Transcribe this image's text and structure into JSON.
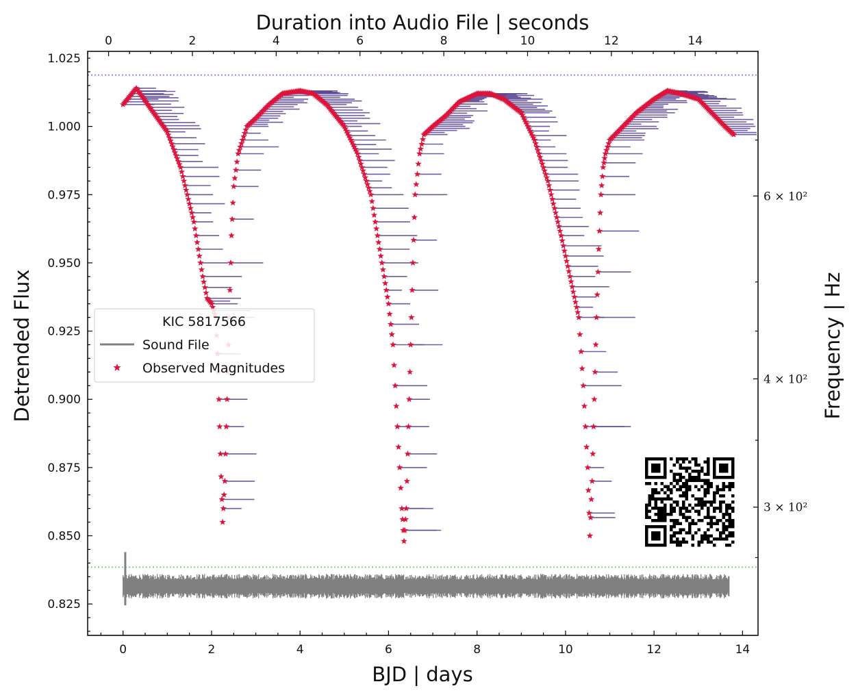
{
  "chart_data": {
    "type": "scatter",
    "xlabel": "BJD | days",
    "ylabel": "Detrended Flux",
    "top_xlabel": "Duration into Audio File | seconds",
    "right_ylabel": "Frequency | Hz",
    "xlim": [
      -0.8,
      14.35
    ],
    "ylim": [
      0.8135,
      1.0275
    ],
    "top_xlim": [
      -0.5,
      15.5
    ],
    "x_ticks": [
      "0",
      "2",
      "4",
      "6",
      "8",
      "10",
      "12",
      "14"
    ],
    "y_ticks": [
      "0.825",
      "0.850",
      "0.875",
      "0.900",
      "0.925",
      "0.950",
      "0.975",
      "1.000",
      "1.025"
    ],
    "top_ticks": [
      "0",
      "2",
      "4",
      "6",
      "8",
      "10",
      "12",
      "14"
    ],
    "right_ticks": [
      {
        "label": "6 × 10²",
        "y": 0.9745
      },
      {
        "label": "4 × 10²",
        "y": 0.9075
      },
      {
        "label": "3 × 10²",
        "y": 0.8605
      }
    ],
    "grid": false,
    "legend": {
      "placement": "center-left",
      "title": "KIC 5817566",
      "entries": [
        {
          "label": "Sound File",
          "color": "#808080",
          "marker": "line"
        },
        {
          "label": "Observed Magnitudes",
          "color": "#dc143c",
          "marker": "star"
        }
      ]
    },
    "reference_lines": [
      {
        "y": 1.0188,
        "color": "#8c8cf0",
        "style": "dotted"
      },
      {
        "y": 0.8385,
        "color": "#8fcc8f",
        "style": "dotted"
      }
    ],
    "series": [
      {
        "label": "Observed Magnitudes",
        "color": "#dc143c",
        "trail_color": "#5e4a94",
        "x": [
          0.0,
          0.3,
          0.6,
          1.0,
          1.3,
          1.6,
          1.8,
          1.9,
          2.0,
          2.1,
          2.15,
          2.2,
          2.25,
          2.3,
          2.35,
          2.4,
          2.45,
          2.5,
          2.6,
          2.8,
          3.0,
          3.3,
          3.6,
          4.0,
          4.3,
          4.6,
          5.0,
          5.3,
          5.6,
          5.8,
          6.0,
          6.1,
          6.2,
          6.3,
          6.35,
          6.4,
          6.45,
          6.5,
          6.55,
          6.6,
          6.7,
          6.8,
          7.0,
          7.3,
          7.6,
          8.0,
          8.3,
          8.6,
          9.0,
          9.3,
          9.6,
          9.9,
          10.1,
          10.3,
          10.4,
          10.5,
          10.55,
          10.6,
          10.65,
          10.7,
          10.75,
          10.8,
          10.85,
          10.9,
          11.0,
          11.3,
          11.6,
          12.0,
          12.3,
          12.6,
          13.0,
          13.3,
          13.6,
          13.8
        ],
        "y": [
          1.008,
          1.014,
          1.007,
          0.998,
          0.985,
          0.965,
          0.945,
          0.937,
          0.935,
          0.93,
          0.91,
          0.88,
          0.855,
          0.87,
          0.9,
          0.93,
          0.96,
          0.978,
          0.99,
          1.0,
          1.003,
          1.008,
          1.012,
          1.013,
          1.012,
          1.008,
          1.0,
          0.99,
          0.975,
          0.955,
          0.935,
          0.92,
          0.89,
          0.86,
          0.848,
          0.86,
          0.89,
          0.92,
          0.95,
          0.975,
          0.99,
          0.997,
          1.0,
          1.004,
          1.009,
          1.012,
          1.012,
          1.01,
          1.005,
          0.995,
          0.98,
          0.96,
          0.945,
          0.93,
          0.905,
          0.875,
          0.85,
          0.87,
          0.9,
          0.93,
          0.955,
          0.975,
          0.985,
          0.99,
          0.995,
          1.0,
          1.005,
          1.01,
          1.013,
          1.012,
          1.01,
          1.005,
          1.0,
          0.997
        ]
      },
      {
        "label": "Sound File",
        "color": "#808080",
        "x_range": [
          0.0,
          13.7
        ],
        "center": 0.8315,
        "amplitude": 0.0045,
        "spike": {
          "x": 0.05,
          "y_min": 0.8245,
          "y_max": 0.844
        }
      }
    ]
  }
}
